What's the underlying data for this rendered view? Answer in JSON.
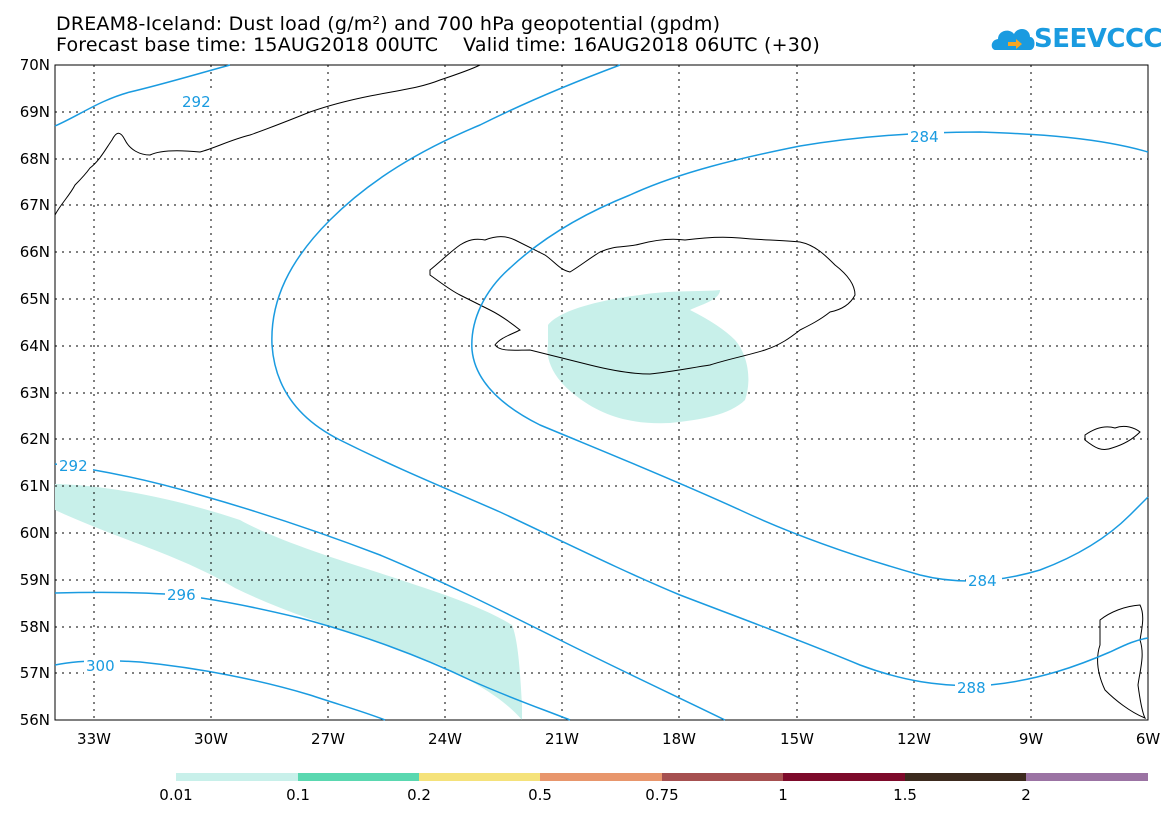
{
  "title": {
    "line1": "DREAM8-Iceland: Dust load (g/m²) and 700 hPa geopotential (gpdm)",
    "line2": "Forecast base time: 15AUG2018 00UTC    Valid time: 16AUG2018 06UTC (+30)"
  },
  "logo": {
    "text": "SEEVCCC",
    "icon": "cloud-arrow-icon",
    "color": "#1a9be0"
  },
  "map": {
    "lat_range": [
      56,
      70
    ],
    "lon_range": [
      -34.3,
      -6
    ],
    "lat_labels": [
      "70N",
      "69N",
      "68N",
      "67N",
      "66N",
      "65N",
      "64N",
      "63N",
      "62N",
      "61N",
      "60N",
      "59N",
      "58N",
      "57N",
      "56N"
    ],
    "lon_labels": [
      "33W",
      "30W",
      "27W",
      "24W",
      "21W",
      "18W",
      "15W",
      "12W",
      "9W",
      "6W"
    ],
    "contour_labels": [
      "292",
      "292",
      "296",
      "300",
      "284",
      "284",
      "288"
    ],
    "contour_color": "#1a9be0",
    "dust_color": "#c8f0ea"
  },
  "colorbar": {
    "labels": [
      "0.01",
      "0.1",
      "0.2",
      "0.5",
      "0.75",
      "1",
      "1.5",
      "2"
    ],
    "colors": [
      "#c8f0ea",
      "#5ad8b0",
      "#f5e27a",
      "#e8966c",
      "#a65050",
      "#7d0a2a",
      "#3c2a1e",
      "#9b73a3"
    ]
  }
}
